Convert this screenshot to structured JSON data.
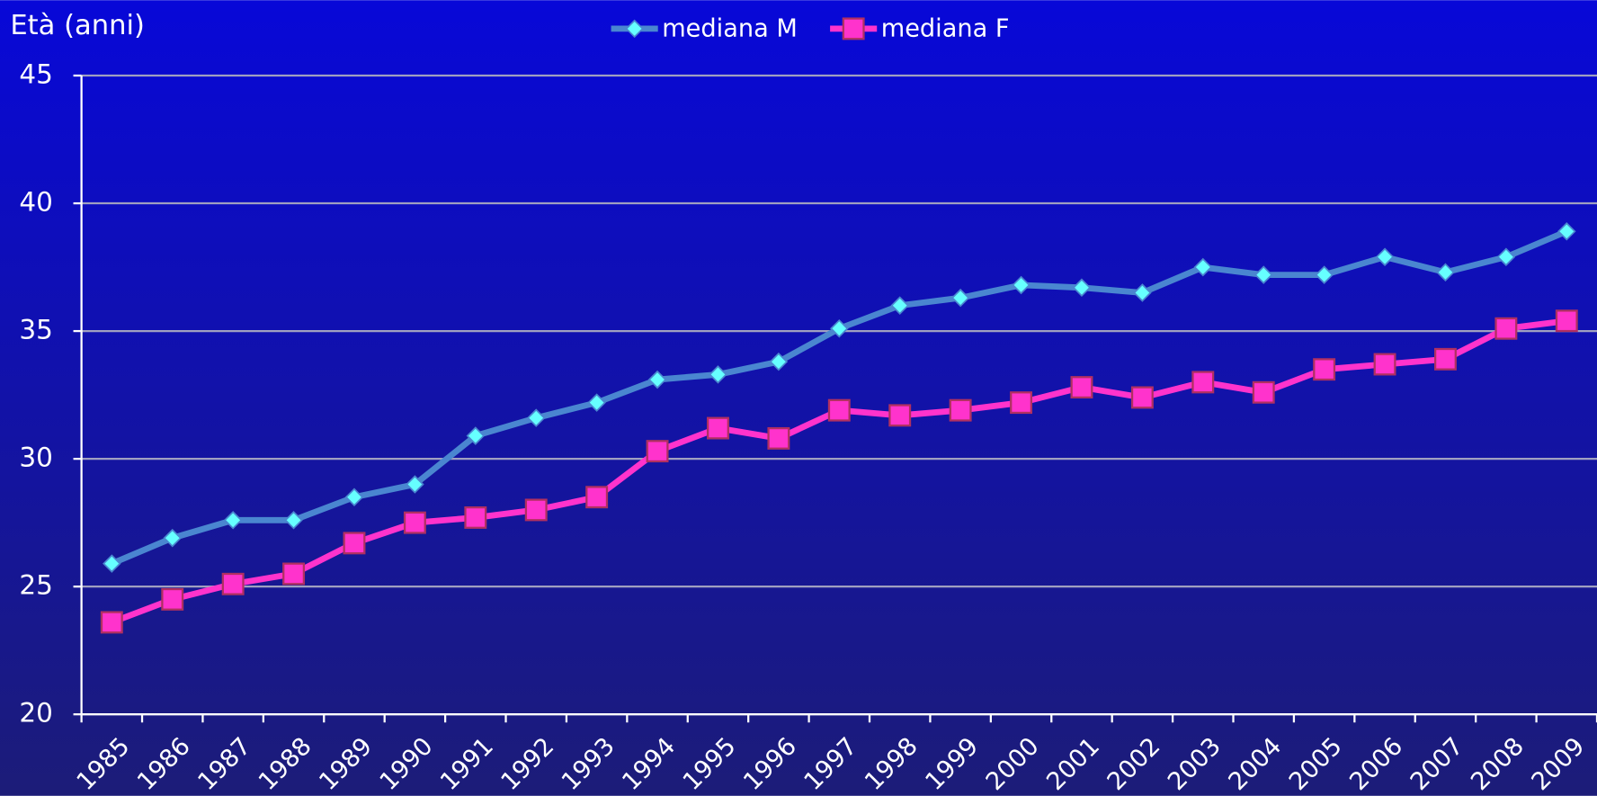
{
  "chart_data": {
    "type": "line",
    "y_label": "Età (anni)",
    "categories": [
      "1985",
      "1986",
      "1987",
      "1988",
      "1989",
      "1990",
      "1991",
      "1992",
      "1993",
      "1994",
      "1995",
      "1996",
      "1997",
      "1998",
      "1999",
      "2000",
      "2001",
      "2002",
      "2003",
      "2004",
      "2005",
      "2006",
      "2007",
      "2008",
      "2009"
    ],
    "series": [
      {
        "name": "mediana M",
        "color": "#4a86d0",
        "marker": "diamond",
        "marker_color": "#66ffff",
        "values": [
          25.9,
          26.9,
          27.6,
          27.6,
          28.5,
          29.0,
          30.9,
          31.6,
          32.2,
          33.1,
          33.3,
          33.8,
          35.1,
          36.0,
          36.3,
          36.8,
          36.7,
          36.5,
          37.5,
          37.2,
          37.2,
          37.9,
          37.3,
          37.9,
          38.9
        ]
      },
      {
        "name": "mediana F",
        "color": "#ff33cc",
        "marker": "square",
        "marker_color": "#ff33cc",
        "values": [
          23.6,
          24.5,
          25.1,
          25.5,
          26.7,
          27.5,
          27.7,
          28.0,
          28.5,
          30.3,
          31.2,
          30.8,
          31.9,
          31.7,
          31.9,
          32.2,
          32.8,
          32.4,
          33.0,
          32.6,
          33.5,
          33.7,
          33.9,
          35.1,
          35.4
        ]
      }
    ],
    "ylim": [
      20,
      45
    ],
    "yticks": [
      20,
      25,
      30,
      35,
      40,
      45
    ],
    "grid": true,
    "legend": "top"
  }
}
